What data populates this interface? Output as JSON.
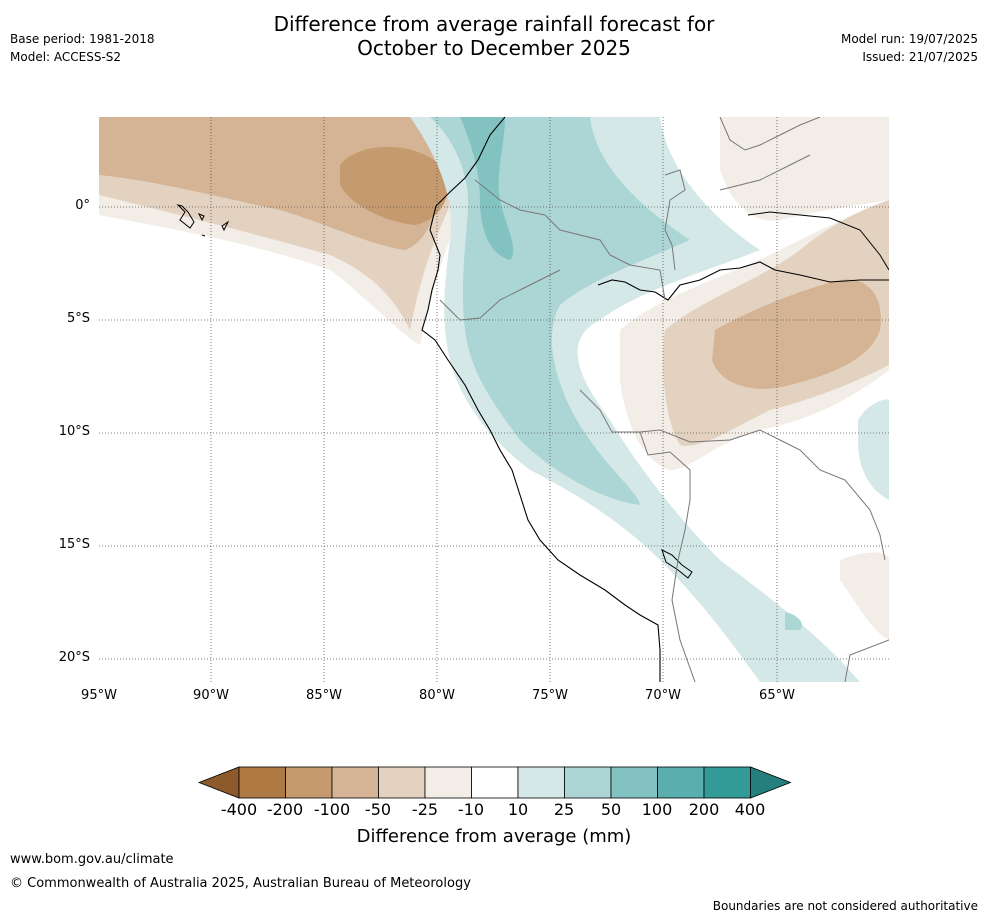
{
  "title": {
    "line1": "Difference from average rainfall forecast for",
    "line2": "October to December 2025"
  },
  "meta": {
    "base_period": "Base period: 1981-2018",
    "model": "Model: ACCESS-S2",
    "model_run": "Model run: 19/07/2025",
    "issued": "Issued: 21/07/2025"
  },
  "map": {
    "lat_labels": [
      "0°",
      "5°S",
      "10°S",
      "15°S",
      "20°S"
    ],
    "lon_labels": [
      "95°W",
      "90°W",
      "85°W",
      "80°W",
      "75°W",
      "70°W",
      "65°W"
    ],
    "lat_values": [
      0,
      -5,
      -10,
      -15,
      -20
    ],
    "lon_values": [
      -95,
      -90,
      -85,
      -80,
      -75,
      -70,
      -65
    ],
    "extent": {
      "lon_min": -95,
      "lon_max": -60,
      "lat_min": -21,
      "lat_max": 4
    }
  },
  "colorbar": {
    "title": "Difference from average (mm)",
    "tick_labels": [
      "-400",
      "-200",
      "-100",
      "-50",
      "-25",
      "-10",
      "10",
      "25",
      "50",
      "100",
      "200",
      "400"
    ],
    "colors": [
      "#8c5a2b",
      "#b07a45",
      "#c49a6e",
      "#d4b494",
      "#e4d2c0",
      "#f2ede6",
      "#ffffff",
      "#d4e9e7",
      "#acd6d5",
      "#82c3c1",
      "#5aaead",
      "#329a97",
      "#257f7c"
    ]
  },
  "footer": {
    "url": "www.bom.gov.au/climate",
    "copyright": "© Commonwealth of Australia 2025, Australian Bureau of Meteorology",
    "disclaimer": "Boundaries are not considered authoritative"
  }
}
